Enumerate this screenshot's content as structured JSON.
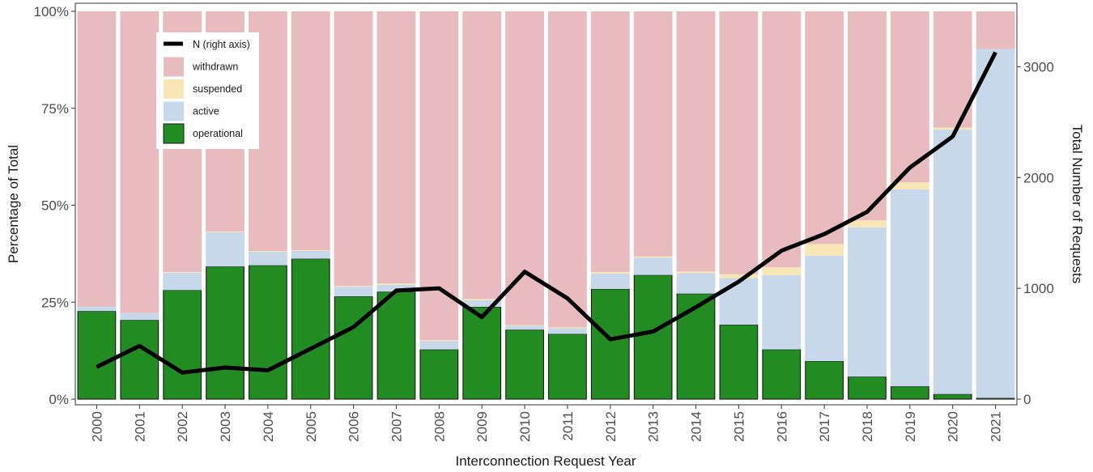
{
  "chart_data": {
    "type": "bar",
    "stacked": true,
    "xlabel": "Interconnection Request Year",
    "ylabel": "Percentage of Total",
    "y2label": "Total Number of Requests",
    "ylim": [
      0,
      1
    ],
    "y2lim": [
      0,
      3500
    ],
    "yticks": [
      "0%",
      "25%",
      "50%",
      "75%",
      "100%"
    ],
    "y2ticks": [
      "0",
      "1000",
      "2000",
      "3000"
    ],
    "categories": [
      "2000",
      "2001",
      "2002",
      "2003",
      "2004",
      "2005",
      "2006",
      "2007",
      "2008",
      "2009",
      "2010",
      "2011",
      "2012",
      "2013",
      "2014",
      "2015",
      "2016",
      "2017",
      "2018",
      "2019",
      "2020",
      "2021"
    ],
    "series": [
      {
        "name": "operational",
        "color": "#228B22",
        "values": [
          0.227,
          0.204,
          0.281,
          0.342,
          0.345,
          0.362,
          0.265,
          0.277,
          0.128,
          0.238,
          0.179,
          0.168,
          0.284,
          0.32,
          0.272,
          0.192,
          0.128,
          0.098,
          0.058,
          0.033,
          0.013,
          0.003
        ]
      },
      {
        "name": "active",
        "color": "#C6D8EA",
        "values": [
          0.012,
          0.018,
          0.045,
          0.088,
          0.035,
          0.02,
          0.025,
          0.018,
          0.022,
          0.017,
          0.01,
          0.015,
          0.04,
          0.045,
          0.053,
          0.12,
          0.192,
          0.272,
          0.385,
          0.508,
          0.682,
          0.9
        ]
      },
      {
        "name": "suspended",
        "color": "#F8E6B6",
        "values": [
          0.0,
          0.0,
          0.002,
          0.002,
          0.002,
          0.002,
          0.002,
          0.003,
          0.002,
          0.003,
          0.002,
          0.002,
          0.004,
          0.003,
          0.004,
          0.01,
          0.02,
          0.03,
          0.018,
          0.018,
          0.005,
          0.0
        ]
      },
      {
        "name": "withdrawn",
        "color": "#E8BCBE",
        "values": [
          0.761,
          0.778,
          0.672,
          0.568,
          0.618,
          0.616,
          0.708,
          0.702,
          0.848,
          0.742,
          0.809,
          0.815,
          0.672,
          0.632,
          0.671,
          0.678,
          0.66,
          0.6,
          0.539,
          0.441,
          0.3,
          0.097
        ]
      }
    ],
    "line": {
      "name": "N (right axis)",
      "axis": "right",
      "color": "#000000",
      "values": [
        290,
        480,
        240,
        285,
        260,
        455,
        650,
        980,
        1000,
        740,
        1150,
        910,
        540,
        610,
        830,
        1060,
        1340,
        1490,
        1690,
        2090,
        2370,
        3130
      ]
    },
    "legend": {
      "position": "top-left",
      "items": [
        {
          "label": "N (right axis)",
          "kind": "line",
          "color": "#000000"
        },
        {
          "label": "withdrawn",
          "kind": "box",
          "color": "#E8BCBE"
        },
        {
          "label": "suspended",
          "kind": "box",
          "color": "#F8E6B6"
        },
        {
          "label": "active",
          "kind": "box",
          "color": "#C6D8EA"
        },
        {
          "label": "operational",
          "kind": "box",
          "color": "#228B22"
        }
      ]
    }
  }
}
